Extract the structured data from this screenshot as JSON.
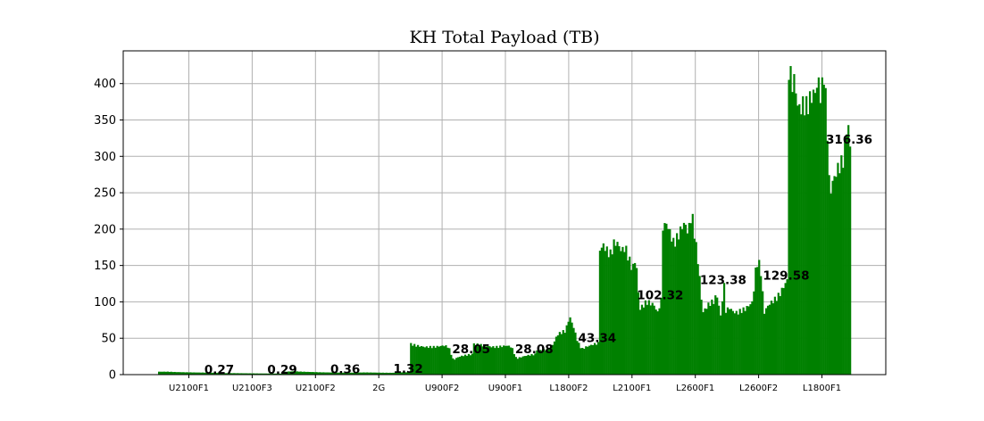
{
  "chart_data": {
    "type": "bar",
    "title": "KH Total Payload (TB)",
    "xlabel": "",
    "ylabel": "",
    "ylim": [
      0,
      445
    ],
    "yticks": [
      0,
      50,
      100,
      150,
      200,
      250,
      300,
      350,
      400
    ],
    "grid": true,
    "bar_color": "#008000",
    "categories": [
      "U2100F1",
      "U2100F3",
      "U2100F2",
      "2G",
      "U900F2",
      "U900F1",
      "L1800F2",
      "L2100F1",
      "L2600F1",
      "L2600F2",
      "L1800F1"
    ],
    "groups": [
      {
        "name": "U2100F1",
        "annotation": "0.27",
        "label_value": 0.27,
        "profile": [
          4,
          4,
          3.5,
          3.2,
          3,
          2.8,
          2.6,
          2.5
        ]
      },
      {
        "name": "U2100F3",
        "annotation": "0.29",
        "label_value": 0.29,
        "profile": [
          2,
          2,
          1.8,
          1.6,
          1.5,
          1.4
        ]
      },
      {
        "name": "U2100F2",
        "annotation": "0.36",
        "label_value": 0.36,
        "profile": [
          4,
          4.5,
          4,
          3.6,
          3.2,
          3,
          2.8,
          2.5
        ]
      },
      {
        "name": "2G",
        "annotation": "1.32",
        "label_value": 1.32,
        "profile": [
          2.5,
          2.8,
          3,
          2.8,
          2.6,
          2.5,
          3,
          3.2
        ]
      },
      {
        "name": "U900F2",
        "annotation": "28.05",
        "label_value": 28.05,
        "profile": [
          42,
          40,
          39,
          38,
          38,
          38,
          39,
          40,
          38,
          20,
          24,
          26,
          27,
          28
        ]
      },
      {
        "name": "U900F1",
        "annotation": "28.08",
        "label_value": 28.08,
        "profile": [
          42,
          41,
          40,
          39,
          38,
          38,
          39,
          40,
          38,
          22,
          24,
          26,
          27,
          28
        ]
      },
      {
        "name": "L1800F2",
        "annotation": "43.34",
        "label_value": 43.34,
        "profile": [
          33,
          33,
          34,
          36,
          42,
          55,
          58,
          60,
          80,
          65,
          45,
          35,
          38,
          40,
          42,
          43
        ]
      },
      {
        "name": "L2100F1",
        "annotation": "102.32",
        "label_value": 102.32,
        "profile": [
          172,
          178,
          170,
          165,
          182,
          180,
          170,
          175,
          160,
          145,
          160,
          90,
          95,
          100,
          98,
          96,
          85,
          102
        ]
      },
      {
        "name": "L2600F1",
        "annotation": "123.38",
        "label_value": 123.38,
        "profile": [
          203,
          208,
          195,
          180,
          188,
          200,
          209,
          195,
          222,
          185,
          145,
          85,
          92,
          98,
          100,
          110,
          80,
          123
        ]
      },
      {
        "name": "L2600F2",
        "annotation": "129.58",
        "label_value": 129.58,
        "profile": [
          88,
          92,
          86,
          85,
          88,
          90,
          95,
          100,
          155,
          150,
          85,
          95,
          100,
          104,
          110,
          120,
          130
        ]
      },
      {
        "name": "L1800F1",
        "annotation": "316.36",
        "label_value": 316.36,
        "profile": [
          422,
          400,
          405,
          370,
          365,
          372,
          368,
          375,
          385,
          388,
          405,
          380,
          415,
          355,
          245,
          265,
          275,
          285,
          290,
          300,
          350,
          316
        ]
      }
    ]
  }
}
